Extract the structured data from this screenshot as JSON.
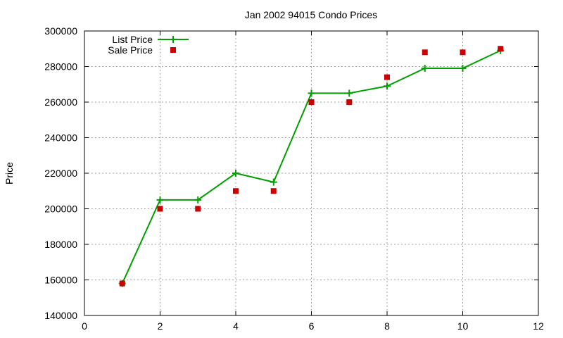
{
  "chart_data": {
    "type": "line",
    "title": "Jan 2002 94015 Condo Prices",
    "xlabel": "",
    "ylabel": "Price",
    "xlim": [
      0,
      12
    ],
    "ylim": [
      140000,
      300000
    ],
    "x_ticks": [
      "0",
      "2",
      "4",
      "6",
      "8",
      "10",
      "12"
    ],
    "y_ticks": [
      "140000",
      "160000",
      "180000",
      "200000",
      "220000",
      "240000",
      "260000",
      "280000",
      "300000"
    ],
    "x_tick_values": [
      0,
      2,
      4,
      6,
      8,
      10,
      12
    ],
    "y_tick_values": [
      140000,
      160000,
      180000,
      200000,
      220000,
      240000,
      260000,
      280000,
      300000
    ],
    "grid": true,
    "legend_position": "top-left",
    "series": [
      {
        "name": "List Price",
        "style": "line-with-plus",
        "color": "#00a000",
        "points": [
          {
            "x": 1,
            "y": 158000
          },
          {
            "x": 2,
            "y": 205000
          },
          {
            "x": 3,
            "y": 205000
          },
          {
            "x": 4,
            "y": 220000
          },
          {
            "x": 5,
            "y": 215000
          },
          {
            "x": 6,
            "y": 265000
          },
          {
            "x": 7,
            "y": 265000
          },
          {
            "x": 8,
            "y": 269000
          },
          {
            "x": 9,
            "y": 279000
          },
          {
            "x": 10,
            "y": 279000
          },
          {
            "x": 11,
            "y": 289000
          }
        ]
      },
      {
        "name": "Sale Price",
        "style": "square-markers",
        "color": "#cc0000",
        "points": [
          {
            "x": 1,
            "y": 158000
          },
          {
            "x": 2,
            "y": 200000
          },
          {
            "x": 3,
            "y": 200000
          },
          {
            "x": 4,
            "y": 210000
          },
          {
            "x": 5,
            "y": 210000
          },
          {
            "x": 6,
            "y": 260000
          },
          {
            "x": 7,
            "y": 260000
          },
          {
            "x": 8,
            "y": 274000
          },
          {
            "x": 9,
            "y": 288000
          },
          {
            "x": 10,
            "y": 288000
          },
          {
            "x": 11,
            "y": 290000
          }
        ]
      }
    ]
  }
}
